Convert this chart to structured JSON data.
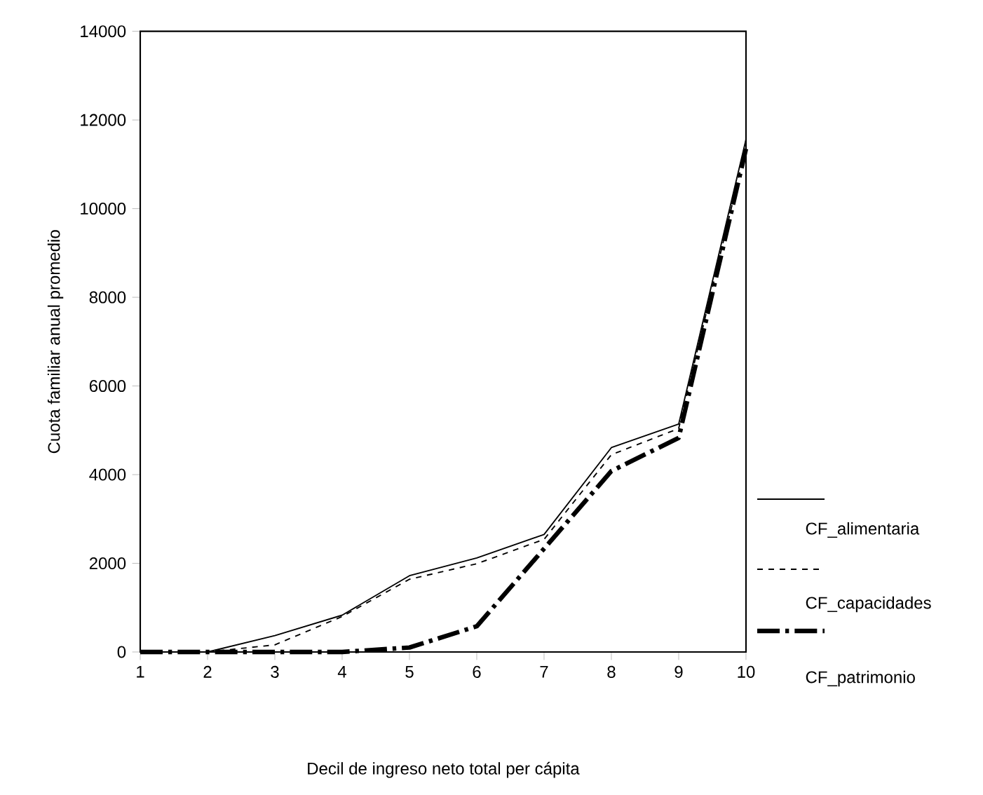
{
  "chart_data": {
    "type": "line",
    "xlabel": "Decil de ingreso neto total per cápita",
    "ylabel": "Cuota familiar anual promedio",
    "x": [
      1,
      2,
      3,
      4,
      5,
      6,
      7,
      8,
      9,
      10
    ],
    "series": [
      {
        "name": "CF_alimentaria",
        "color": "#000000",
        "line_style": "solid",
        "values": [
          0,
          0,
          370,
          830,
          1720,
          2120,
          2650,
          4610,
          5140,
          11560
        ]
      },
      {
        "name": "CF_capacidades",
        "color": "#000000",
        "line_style": "dashed",
        "values": [
          0,
          0,
          160,
          800,
          1640,
          1990,
          2540,
          4450,
          5040,
          11400
        ]
      },
      {
        "name": "CF_patrimonio",
        "color": "#000000",
        "line_style": "dashdot",
        "values": [
          0,
          0,
          0,
          0,
          100,
          580,
          2330,
          4080,
          4830,
          11350
        ]
      }
    ],
    "xlim": [
      1,
      10
    ],
    "xticks": [
      1,
      2,
      3,
      4,
      5,
      6,
      7,
      8,
      9,
      10
    ],
    "ylim": [
      0,
      14000
    ],
    "yticks": [
      0,
      2000,
      4000,
      6000,
      8000,
      10000,
      12000,
      14000
    ],
    "legend": "right"
  }
}
